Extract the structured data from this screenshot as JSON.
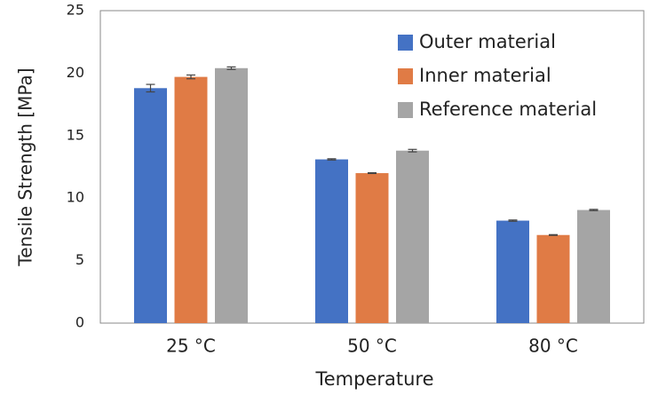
{
  "chart_data": {
    "type": "bar",
    "y_label": "Tensile Strength  [MPa]",
    "x_label": "Temperature",
    "categories": [
      "25 °C",
      "50 °C",
      "80 °C"
    ],
    "series": [
      {
        "name": "Outer material",
        "color": "#4472c4",
        "values": [
          18.8,
          13.1,
          8.2
        ],
        "errors": [
          0.3,
          0.05,
          0.05
        ]
      },
      {
        "name": "Inner material",
        "color": "#e07b45",
        "values": [
          19.7,
          12.0,
          7.05
        ],
        "errors": [
          0.15,
          0.03,
          0.03
        ]
      },
      {
        "name": "Reference material",
        "color": "#a5a5a5",
        "values": [
          20.4,
          13.8,
          9.05
        ],
        "errors": [
          0.1,
          0.1,
          0.05
        ]
      }
    ],
    "ylim": [
      0,
      25
    ],
    "yticks": [
      0,
      5,
      10,
      15,
      20,
      25
    ],
    "grid": false,
    "legend": "top-right"
  }
}
